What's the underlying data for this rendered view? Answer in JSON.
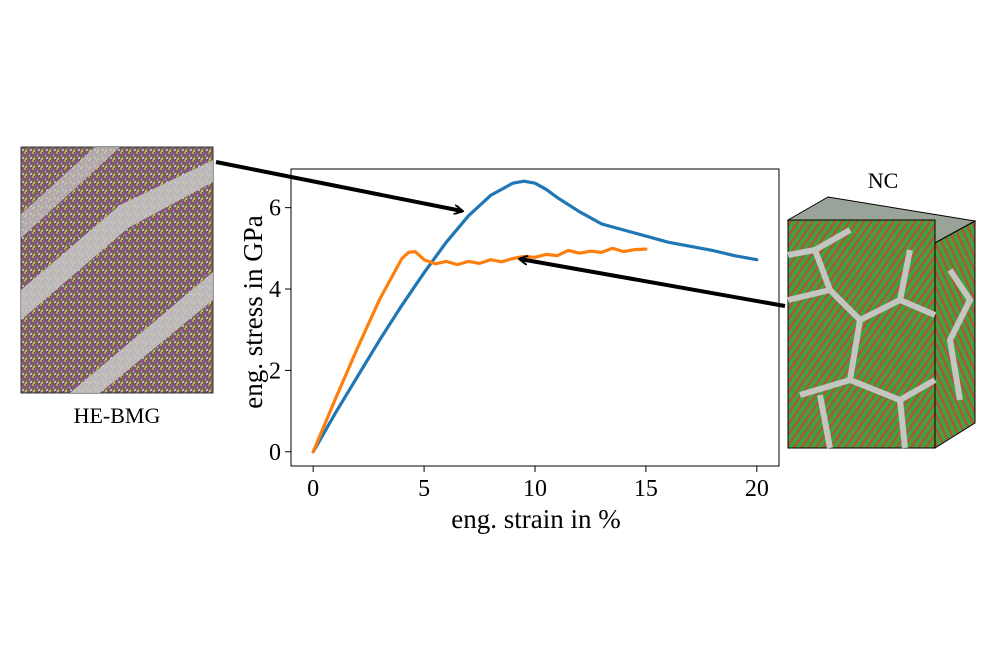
{
  "chart_data": {
    "type": "line",
    "xlabel": "eng. strain in %",
    "ylabel": "eng. stress in GPa",
    "xlim": [
      -1,
      21
    ],
    "ylim": [
      -0.35,
      6.95
    ],
    "xticks": [
      0,
      5,
      10,
      15,
      20
    ],
    "yticks": [
      0,
      2,
      4,
      6
    ],
    "grid": false,
    "series": [
      {
        "color": "#1f77b4",
        "x": [
          0,
          1,
          2,
          3,
          4,
          5,
          6,
          7,
          8,
          9,
          9.5,
          10,
          10.5,
          11,
          12,
          13,
          14,
          15,
          16,
          17,
          18,
          19,
          20
        ],
        "y": [
          0,
          0.95,
          1.85,
          2.75,
          3.6,
          4.4,
          5.15,
          5.8,
          6.3,
          6.6,
          6.65,
          6.6,
          6.45,
          6.25,
          5.9,
          5.6,
          5.45,
          5.3,
          5.15,
          5.05,
          4.95,
          4.82,
          4.72
        ]
      },
      {
        "color": "#ff7f0e",
        "x": [
          0,
          1,
          2,
          3,
          4,
          4.3,
          4.6,
          5,
          5.5,
          6,
          6.5,
          7,
          7.5,
          8,
          8.5,
          9,
          9.5,
          10,
          10.5,
          11,
          11.5,
          12,
          12.5,
          13,
          13.5,
          14,
          14.5,
          15
        ],
        "y": [
          0,
          1.3,
          2.55,
          3.75,
          4.75,
          4.9,
          4.92,
          4.72,
          4.62,
          4.68,
          4.6,
          4.68,
          4.63,
          4.72,
          4.67,
          4.75,
          4.8,
          4.78,
          4.85,
          4.82,
          4.95,
          4.88,
          4.93,
          4.9,
          5.0,
          4.92,
          4.97,
          4.98
        ]
      }
    ]
  },
  "annotations": {
    "left_label": "HE-BMG",
    "right_label": "NC"
  }
}
